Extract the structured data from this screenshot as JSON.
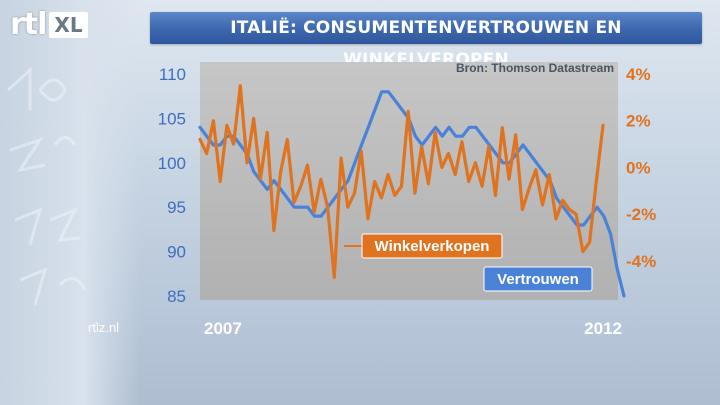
{
  "channel_logo": {
    "rtl": "rtl",
    "xl": "XL"
  },
  "title": "ITALIË: CONSUMENTENVERTROUWEN EN WINKELVEROPEN",
  "source": "Bron: Thomson Datastream",
  "footer_site": "rtlz.nl",
  "chart_data": {
    "type": "line",
    "x_labels": [
      "2007",
      "2012"
    ],
    "left_axis": {
      "ticks": [
        "110",
        "105",
        "100",
        "95",
        "90",
        "85"
      ],
      "ylim": [
        85,
        110
      ]
    },
    "right_axis": {
      "ticks": [
        "4%",
        "2%",
        "0%",
        "-2%",
        "-4%"
      ],
      "ylim": [
        -5.5,
        4
      ]
    },
    "grid": false,
    "series": [
      {
        "name": "Vertrouwen",
        "axis": "left",
        "color": "#4a82d8",
        "values": [
          104,
          103,
          102,
          102,
          103,
          103,
          102,
          101,
          99,
          98,
          97,
          98,
          97,
          96,
          95,
          95,
          95,
          94,
          94,
          95,
          96,
          97,
          98,
          100,
          102,
          104,
          106,
          108,
          108,
          107,
          106,
          105,
          103,
          102,
          103,
          104,
          103,
          104,
          103,
          103,
          104,
          104,
          103,
          102,
          101,
          100,
          100,
          101,
          102,
          101,
          100,
          99,
          98,
          96,
          95,
          94,
          93,
          93,
          94,
          95,
          94,
          92,
          88,
          85
        ]
      },
      {
        "name": "Winkelverkopen",
        "axis": "right",
        "color": "#e0731f",
        "values": [
          1.2,
          0.6,
          2,
          -0.6,
          1.8,
          1,
          3.5,
          0.2,
          2.1,
          -0.5,
          1.5,
          -2.7,
          -0.2,
          1.2,
          -1.5,
          -0.8,
          0.1,
          -1.9,
          -0.5,
          -1.7,
          -4.7,
          0.4,
          -1.7,
          -1.1,
          0.7,
          -2.2,
          -0.6,
          -1.3,
          -0.3,
          -1.2,
          -0.8,
          2.4,
          -1.1,
          0.9,
          -0.7,
          1.5,
          0,
          0.6,
          -0.3,
          1.1,
          -0.6,
          0.2,
          -0.8,
          0.9,
          -1.2,
          1.7,
          -0.5,
          1.4,
          -1.8,
          -0.9,
          -0.1,
          -1.6,
          -0.3,
          -2.2,
          -1.4,
          -1.8,
          -2,
          -3.6,
          -3.2,
          -0.6,
          1.8
        ]
      }
    ],
    "annotations": [
      {
        "text": "Winkelverkopen",
        "color": "#e0731f"
      },
      {
        "text": "Vertrouwen",
        "color": "#4a82d8"
      }
    ]
  }
}
